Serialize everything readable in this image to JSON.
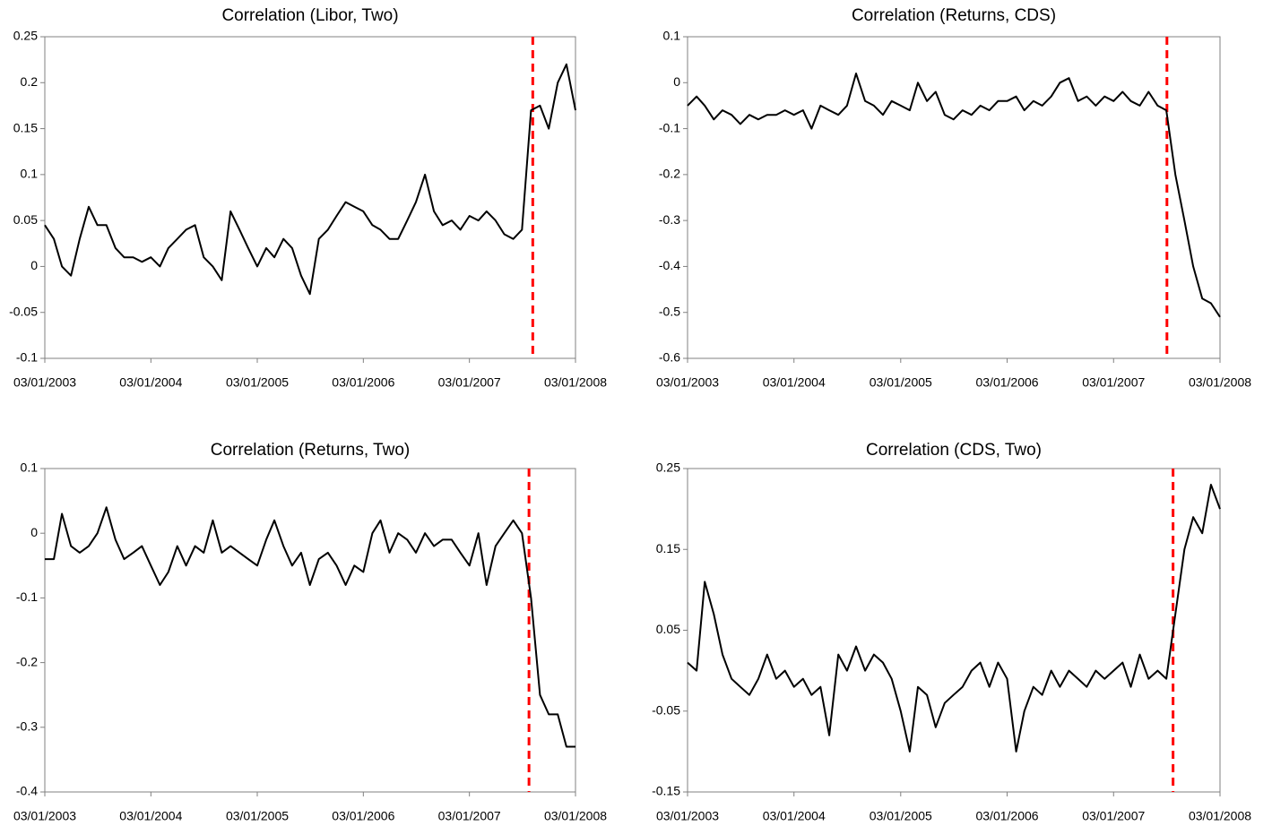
{
  "chart_data": [
    {
      "type": "line",
      "title": "Correlation (Libor, Two)",
      "color": "#000000",
      "x": [
        "03/01/2003",
        "03/02/2003",
        "03/03/2003",
        "03/04/2003",
        "03/05/2003",
        "03/06/2003",
        "03/07/2003",
        "03/08/2003",
        "03/09/2003",
        "03/10/2003",
        "03/11/2003",
        "03/12/2003",
        "03/01/2004",
        "03/02/2004",
        "03/03/2004",
        "03/04/2004",
        "03/05/2004",
        "03/06/2004",
        "03/07/2004",
        "03/08/2004",
        "03/09/2004",
        "03/10/2004",
        "03/11/2004",
        "03/12/2004",
        "03/01/2005",
        "03/02/2005",
        "03/03/2005",
        "03/04/2005",
        "03/05/2005",
        "03/06/2005",
        "03/07/2005",
        "03/08/2005",
        "03/09/2005",
        "03/10/2005",
        "03/11/2005",
        "03/12/2005",
        "03/01/2006",
        "03/02/2006",
        "03/03/2006",
        "03/04/2006",
        "03/05/2006",
        "03/06/2006",
        "03/07/2006",
        "03/08/2006",
        "03/09/2006",
        "03/10/2006",
        "03/11/2006",
        "03/12/2006",
        "03/01/2007",
        "03/02/2007",
        "03/03/2007",
        "03/04/2007",
        "03/05/2007",
        "03/06/2007",
        "03/07/2007",
        "03/08/2007",
        "03/09/2007",
        "03/10/2007",
        "03/11/2007",
        "03/12/2007",
        "03/01/2008"
      ],
      "values": [
        0.045,
        0.03,
        0.0,
        -0.01,
        0.03,
        0.065,
        0.045,
        0.045,
        0.02,
        0.01,
        0.01,
        0.005,
        0.01,
        0.0,
        0.02,
        0.03,
        0.04,
        0.045,
        0.01,
        0.0,
        -0.015,
        0.06,
        0.04,
        0.02,
        0.0,
        0.02,
        0.01,
        0.03,
        0.02,
        -0.01,
        -0.03,
        0.03,
        0.04,
        0.055,
        0.07,
        0.065,
        0.06,
        0.045,
        0.04,
        0.03,
        0.03,
        0.05,
        0.07,
        0.1,
        0.06,
        0.045,
        0.05,
        0.04,
        0.055,
        0.05,
        0.06,
        0.05,
        0.035,
        0.03,
        0.04,
        0.17,
        0.175,
        0.15,
        0.2,
        0.22,
        0.17
      ],
      "xlim": [
        "03/01/2003",
        "03/01/2008"
      ],
      "xticks": [
        "03/01/2003",
        "03/01/2004",
        "03/01/2005",
        "03/01/2006",
        "03/01/2007",
        "03/01/2008"
      ],
      "ylim": [
        -0.1,
        0.25
      ],
      "yticks": [
        -0.1,
        -0.05,
        0,
        0.05,
        0.1,
        0.15,
        0.2,
        0.25
      ],
      "event_x": "09/08/2007",
      "event_color": "#ff0000"
    },
    {
      "type": "line",
      "title": "Correlation (Returns, CDS)",
      "color": "#000000",
      "x": [
        "03/01/2003",
        "03/02/2003",
        "03/03/2003",
        "03/04/2003",
        "03/05/2003",
        "03/06/2003",
        "03/07/2003",
        "03/08/2003",
        "03/09/2003",
        "03/10/2003",
        "03/11/2003",
        "03/12/2003",
        "03/01/2004",
        "03/02/2004",
        "03/03/2004",
        "03/04/2004",
        "03/05/2004",
        "03/06/2004",
        "03/07/2004",
        "03/08/2004",
        "03/09/2004",
        "03/10/2004",
        "03/11/2004",
        "03/12/2004",
        "03/01/2005",
        "03/02/2005",
        "03/03/2005",
        "03/04/2005",
        "03/05/2005",
        "03/06/2005",
        "03/07/2005",
        "03/08/2005",
        "03/09/2005",
        "03/10/2005",
        "03/11/2005",
        "03/12/2005",
        "03/01/2006",
        "03/02/2006",
        "03/03/2006",
        "03/04/2006",
        "03/05/2006",
        "03/06/2006",
        "03/07/2006",
        "03/08/2006",
        "03/09/2006",
        "03/10/2006",
        "03/11/2006",
        "03/12/2006",
        "03/01/2007",
        "03/02/2007",
        "03/03/2007",
        "03/04/2007",
        "03/05/2007",
        "03/06/2007",
        "03/07/2007",
        "03/08/2007",
        "03/09/2007",
        "03/10/2007",
        "03/11/2007",
        "03/12/2007",
        "03/01/2008"
      ],
      "values": [
        -0.05,
        -0.03,
        -0.05,
        -0.08,
        -0.06,
        -0.07,
        -0.09,
        -0.07,
        -0.08,
        -0.07,
        -0.07,
        -0.06,
        -0.07,
        -0.06,
        -0.1,
        -0.05,
        -0.06,
        -0.07,
        -0.05,
        0.02,
        -0.04,
        -0.05,
        -0.07,
        -0.04,
        -0.05,
        -0.06,
        0.0,
        -0.04,
        -0.02,
        -0.07,
        -0.08,
        -0.06,
        -0.07,
        -0.05,
        -0.06,
        -0.04,
        -0.04,
        -0.03,
        -0.06,
        -0.04,
        -0.05,
        -0.03,
        0.0,
        0.01,
        -0.04,
        -0.03,
        -0.05,
        -0.03,
        -0.04,
        -0.02,
        -0.04,
        -0.05,
        -0.02,
        -0.05,
        -0.06,
        -0.2,
        -0.3,
        -0.4,
        -0.47,
        -0.48,
        -0.51
      ],
      "xlim": [
        "03/01/2003",
        "03/01/2008"
      ],
      "xticks": [
        "03/01/2003",
        "03/01/2004",
        "03/01/2005",
        "03/01/2006",
        "03/01/2007",
        "03/01/2008"
      ],
      "ylim": [
        -0.6,
        0.1
      ],
      "yticks": [
        -0.6,
        -0.5,
        -0.4,
        -0.3,
        -0.2,
        -0.1,
        0,
        0.1
      ],
      "event_x": "05/07/2007",
      "event_color": "#ff0000"
    },
    {
      "type": "line",
      "title": "Correlation (Returns, Two)",
      "color": "#000000",
      "x": [
        "03/01/2003",
        "03/02/2003",
        "03/03/2003",
        "03/04/2003",
        "03/05/2003",
        "03/06/2003",
        "03/07/2003",
        "03/08/2003",
        "03/09/2003",
        "03/10/2003",
        "03/11/2003",
        "03/12/2003",
        "03/01/2004",
        "03/02/2004",
        "03/03/2004",
        "03/04/2004",
        "03/05/2004",
        "03/06/2004",
        "03/07/2004",
        "03/08/2004",
        "03/09/2004",
        "03/10/2004",
        "03/11/2004",
        "03/12/2004",
        "03/01/2005",
        "03/02/2005",
        "03/03/2005",
        "03/04/2005",
        "03/05/2005",
        "03/06/2005",
        "03/07/2005",
        "03/08/2005",
        "03/09/2005",
        "03/10/2005",
        "03/11/2005",
        "03/12/2005",
        "03/01/2006",
        "03/02/2006",
        "03/03/2006",
        "03/04/2006",
        "03/05/2006",
        "03/06/2006",
        "03/07/2006",
        "03/08/2006",
        "03/09/2006",
        "03/10/2006",
        "03/11/2006",
        "03/12/2006",
        "03/01/2007",
        "03/02/2007",
        "03/03/2007",
        "03/04/2007",
        "03/05/2007",
        "03/06/2007",
        "03/07/2007",
        "03/08/2007",
        "03/09/2007",
        "03/10/2007",
        "03/11/2007",
        "03/12/2007",
        "03/01/2008"
      ],
      "values": [
        -0.04,
        -0.04,
        0.03,
        -0.02,
        -0.03,
        -0.02,
        0.0,
        0.04,
        -0.01,
        -0.04,
        -0.03,
        -0.02,
        -0.05,
        -0.08,
        -0.06,
        -0.02,
        -0.05,
        -0.02,
        -0.03,
        0.02,
        -0.03,
        -0.02,
        -0.03,
        -0.04,
        -0.05,
        -0.01,
        0.02,
        -0.02,
        -0.05,
        -0.03,
        -0.08,
        -0.04,
        -0.03,
        -0.05,
        -0.08,
        -0.05,
        -0.06,
        0.0,
        0.02,
        -0.03,
        0.0,
        -0.01,
        -0.03,
        0.0,
        -0.02,
        -0.01,
        -0.01,
        -0.03,
        -0.05,
        0.0,
        -0.08,
        -0.02,
        0.0,
        0.02,
        0.0,
        -0.1,
        -0.25,
        -0.28,
        -0.28,
        -0.33,
        -0.33
      ],
      "xlim": [
        "03/01/2003",
        "03/01/2008"
      ],
      "xticks": [
        "03/01/2003",
        "03/01/2004",
        "03/01/2005",
        "03/01/2006",
        "03/01/2007",
        "03/01/2008"
      ],
      "ylim": [
        -0.4,
        0.1
      ],
      "yticks": [
        -0.4,
        -0.3,
        -0.2,
        -0.1,
        0,
        0.1
      ],
      "event_x": "27/07/2007",
      "event_color": "#ff0000"
    },
    {
      "type": "line",
      "title": "Correlation (CDS, Two)",
      "color": "#000000",
      "x": [
        "03/01/2003",
        "03/02/2003",
        "03/03/2003",
        "03/04/2003",
        "03/05/2003",
        "03/06/2003",
        "03/07/2003",
        "03/08/2003",
        "03/09/2003",
        "03/10/2003",
        "03/11/2003",
        "03/12/2003",
        "03/01/2004",
        "03/02/2004",
        "03/03/2004",
        "03/04/2004",
        "03/05/2004",
        "03/06/2004",
        "03/07/2004",
        "03/08/2004",
        "03/09/2004",
        "03/10/2004",
        "03/11/2004",
        "03/12/2004",
        "03/01/2005",
        "03/02/2005",
        "03/03/2005",
        "03/04/2005",
        "03/05/2005",
        "03/06/2005",
        "03/07/2005",
        "03/08/2005",
        "03/09/2005",
        "03/10/2005",
        "03/11/2005",
        "03/12/2005",
        "03/01/2006",
        "03/02/2006",
        "03/03/2006",
        "03/04/2006",
        "03/05/2006",
        "03/06/2006",
        "03/07/2006",
        "03/08/2006",
        "03/09/2006",
        "03/10/2006",
        "03/11/2006",
        "03/12/2006",
        "03/01/2007",
        "03/02/2007",
        "03/03/2007",
        "03/04/2007",
        "03/05/2007",
        "03/06/2007",
        "03/07/2007",
        "03/08/2007",
        "03/09/2007",
        "03/10/2007",
        "03/11/2007",
        "03/12/2007",
        "03/01/2008"
      ],
      "values": [
        0.01,
        0.0,
        0.11,
        0.07,
        0.02,
        -0.01,
        -0.02,
        -0.03,
        -0.01,
        0.02,
        -0.01,
        0.0,
        -0.02,
        -0.01,
        -0.03,
        -0.02,
        -0.08,
        0.02,
        0.0,
        0.03,
        0.0,
        0.02,
        0.01,
        -0.01,
        -0.05,
        -0.1,
        -0.02,
        -0.03,
        -0.07,
        -0.04,
        -0.03,
        -0.02,
        0.0,
        0.01,
        -0.02,
        0.01,
        -0.01,
        -0.1,
        -0.05,
        -0.02,
        -0.03,
        0.0,
        -0.02,
        0.0,
        -0.01,
        -0.02,
        0.0,
        -0.01,
        0.0,
        0.01,
        -0.02,
        0.02,
        -0.01,
        0.0,
        -0.01,
        0.07,
        0.15,
        0.19,
        0.17,
        0.23,
        0.2
      ],
      "xlim": [
        "03/01/2003",
        "03/01/2008"
      ],
      "xticks": [
        "03/01/2003",
        "03/01/2004",
        "03/01/2005",
        "03/01/2006",
        "03/01/2007",
        "03/01/2008"
      ],
      "ylim": [
        -0.15,
        0.25
      ],
      "yticks": [
        -0.15,
        -0.05,
        0.05,
        0.15,
        0.25
      ],
      "event_x": "26/07/2007",
      "event_color": "#ff0000"
    }
  ]
}
